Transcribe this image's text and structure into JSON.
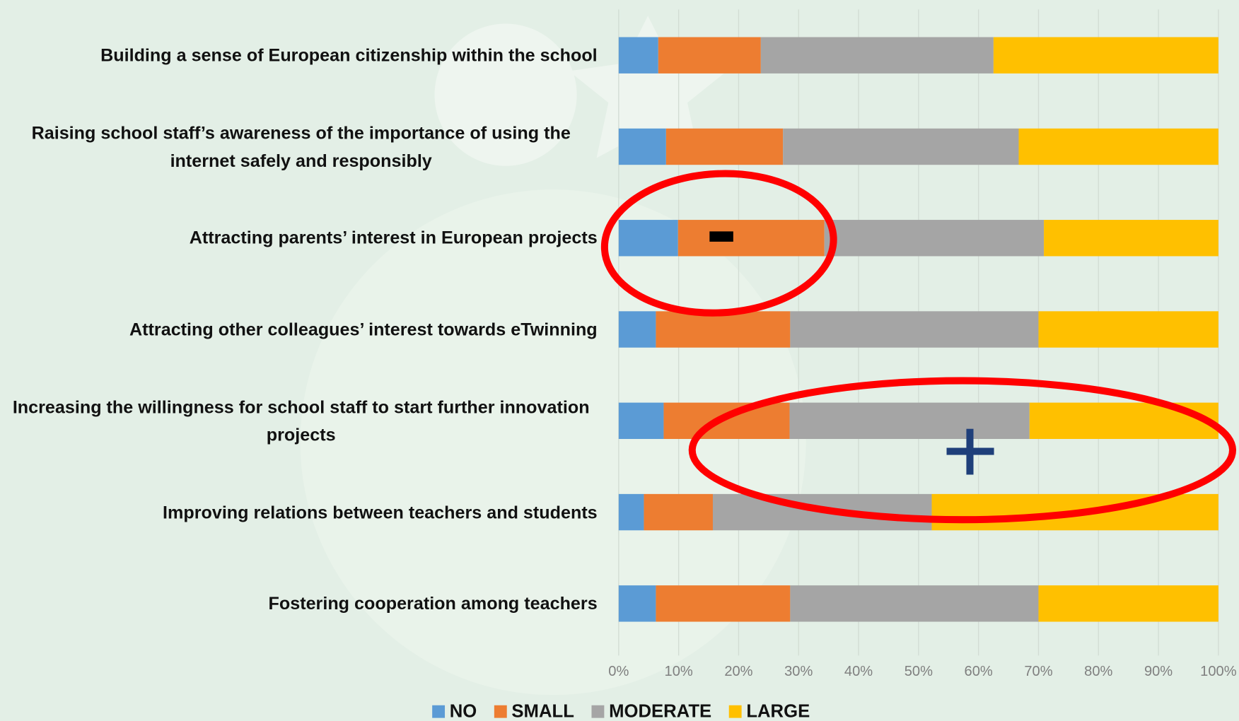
{
  "chart_data": {
    "type": "stacked-bar-horizontal",
    "categories": [
      "Building a sense of European citizenship within the school",
      "Raising school staff’s awareness of the importance of using the internet safely and responsibly",
      "Attracting parents’ interest in European projects",
      "Attracting other colleagues’ interest towards eTwinning",
      "Increasing the willingness for school staff to start further innovation projects",
      "Improving relations between teachers and students",
      "Fostering cooperation among teachers"
    ],
    "series": [
      {
        "name": "NO",
        "color": "#5b9bd5",
        "values": [
          6.6,
          7.9,
          9.9,
          6.2,
          7.5,
          4.2,
          6.2
        ]
      },
      {
        "name": "SMALL",
        "color": "#ed7d31",
        "values": [
          17.1,
          19.5,
          24.4,
          22.4,
          21.0,
          11.5,
          22.4
        ]
      },
      {
        "name": "MODERATE",
        "color": "#a5a5a5",
        "values": [
          38.8,
          39.3,
          36.6,
          41.4,
          40.0,
          36.5,
          41.4
        ]
      },
      {
        "name": "LARGE",
        "color": "#ffc000",
        "values": [
          37.5,
          33.3,
          29.1,
          30.0,
          31.5,
          47.8,
          30.0
        ]
      }
    ],
    "xlim": [
      0,
      100
    ],
    "xticks": [
      {
        "value": 0,
        "label": "0%"
      },
      {
        "value": 10,
        "label": "10%"
      },
      {
        "value": 20,
        "label": "20%"
      },
      {
        "value": 30,
        "label": "30%"
      },
      {
        "value": 40,
        "label": "40%"
      },
      {
        "value": 50,
        "label": "50%"
      },
      {
        "value": 60,
        "label": "60%"
      },
      {
        "value": 70,
        "label": "70%"
      },
      {
        "value": 80,
        "label": "80%"
      },
      {
        "value": 90,
        "label": "90%"
      },
      {
        "value": 100,
        "label": "100%"
      }
    ],
    "grid": true,
    "legend": "bottom"
  }
}
